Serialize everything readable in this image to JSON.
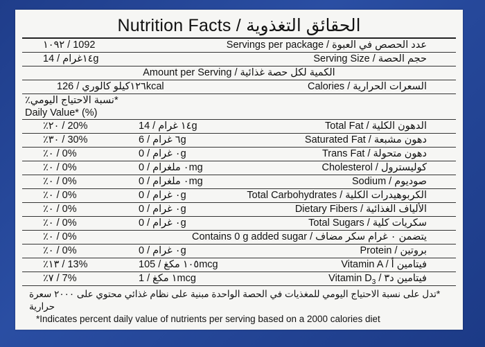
{
  "title": "Nutrition Facts / الحقائق التغذوية",
  "servings": {
    "label": "Servings per package / عدد الحصص في العبوة",
    "value": "١٠٩٢ / 1092"
  },
  "serving_size": {
    "label": "Serving Size / حجم الحصة",
    "value": "١٤غرام / 14g"
  },
  "amount_per_serving": "Amount per Serving / الكمية لكل حصة غذائية",
  "calories": {
    "label": "Calories / السعرات الحرارية",
    "value": "١٢٦كيلو كالوري / 126kcal"
  },
  "daily_value_header": {
    "ar": "٪نسبة الاحتياج اليومي*",
    "en": "Daily Value* (%)"
  },
  "nutrients": [
    {
      "name": "Total Fat / الدهون الكلية",
      "amount": "١٤ غرام / 14g",
      "dv": "٪٢٠ / 20%"
    },
    {
      "name": "Saturated Fat / دهون مشبعة",
      "amount": "٦ غرام / 6g",
      "dv": "٪٣٠ / 30%"
    },
    {
      "name": "Trans Fat / دهون متحولة",
      "amount": "٠ غرام / 0g",
      "dv": "٪٠ / 0%"
    },
    {
      "name": "Cholesterol / كوليسترول",
      "amount": "٠ ملغرام / 0mg",
      "dv": "٪٠ / 0%"
    },
    {
      "name": "Sodium / صوديوم",
      "amount": "٠ ملغرام / 0mg",
      "dv": "٪٠ / 0%"
    },
    {
      "name": "Total Carbohydrates / الكربوهيدرات الكلية",
      "amount": "٠ غرام / 0g",
      "dv": "٪٠ / 0%"
    },
    {
      "name": "Dietary Fibers / الألياف الغذائية",
      "amount": "٠ غرام / 0g",
      "dv": "٪٠ / 0%"
    },
    {
      "name": "Total Sugars / سكريات كلية",
      "amount": "٠ غرام / 0g",
      "dv": "٪٠ / 0%"
    }
  ],
  "added_sugar": {
    "text": "Contains 0 g added sugar / يتضمن ٠ غرام سكر مضاف",
    "dv": "٪٠ / 0%"
  },
  "protein": {
    "name": "Protein / بروتين",
    "amount": "٠ غرام / 0g",
    "dv": "٪٠ / 0%"
  },
  "vitamin_a": {
    "name": "Vitamin A / فيتامين أ",
    "amount": "١٠٥ مكغ / 105mcg",
    "dv": "٪١٣ / 13%"
  },
  "vitamin_d": {
    "name_prefix": "Vitamin D",
    "name_sub": "3",
    "name_suffix": " / فيتامين د٣",
    "amount": "١ مكغ / 1mcg",
    "dv": "٪٧ / 7%"
  },
  "footnote": {
    "ar": "*تدل على نسبة الاحتياج اليومي للمغذيات في الحصة الواحدة مبنية على نظام غذائي محتوي على ٢٠٠٠ سعرة حرارية",
    "en": "*Indicates percent daily value of nutrients per serving based on a 2000 calories diet"
  }
}
